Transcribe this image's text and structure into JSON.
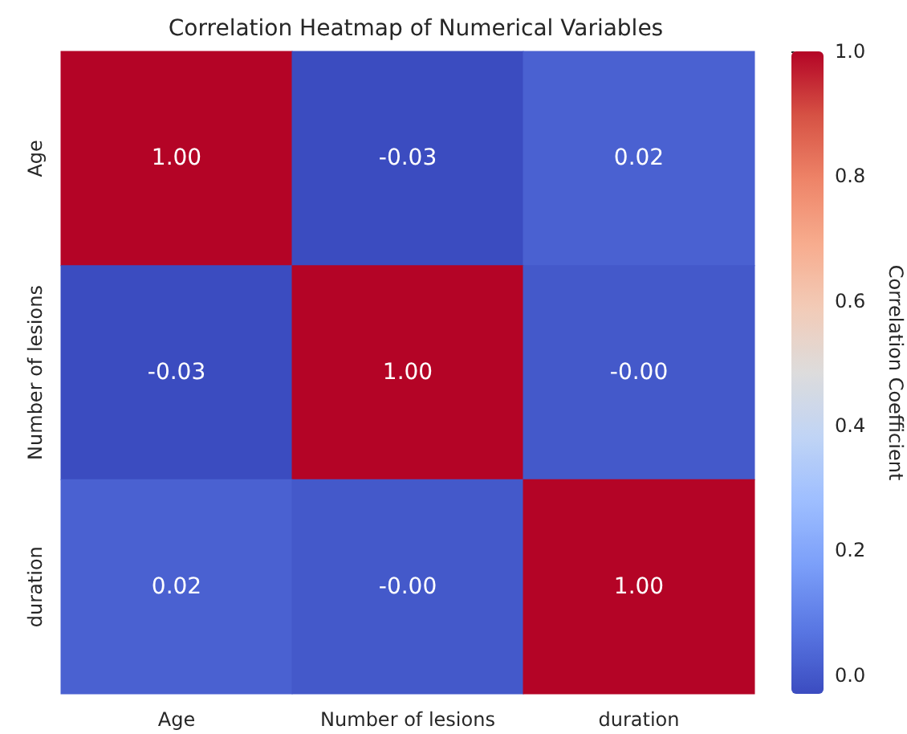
{
  "chart_data": {
    "type": "heatmap",
    "title": "Correlation Heatmap of Numerical Variables",
    "clabel": "Correlation Coefficient",
    "categories": [
      "Age",
      "Number of lesions",
      "duration"
    ],
    "y_categories": [
      "Age",
      "Number of lesions",
      "duration"
    ],
    "cells": [
      [
        1.0,
        -0.03,
        0.02
      ],
      [
        -0.03,
        1.0,
        0
      ],
      [
        0.02,
        0,
        1.0
      ]
    ],
    "cell_labels": [
      [
        "1.00",
        "-0.03",
        "0.02"
      ],
      [
        "-0.03",
        "1.00",
        "-0.00"
      ],
      [
        "0.02",
        "-0.00",
        "1.00"
      ]
    ],
    "clim": [
      -0.03,
      1.0
    ],
    "cticks": [
      {
        "value": 0,
        "label": "0.0"
      },
      {
        "value": 0.2,
        "label": "0.2"
      },
      {
        "value": 0.4,
        "label": "0.4"
      },
      {
        "value": 0.6,
        "label": "0.6"
      },
      {
        "value": 0.8,
        "label": "0.8"
      },
      {
        "value": 1.0,
        "label": "1.0"
      }
    ]
  }
}
